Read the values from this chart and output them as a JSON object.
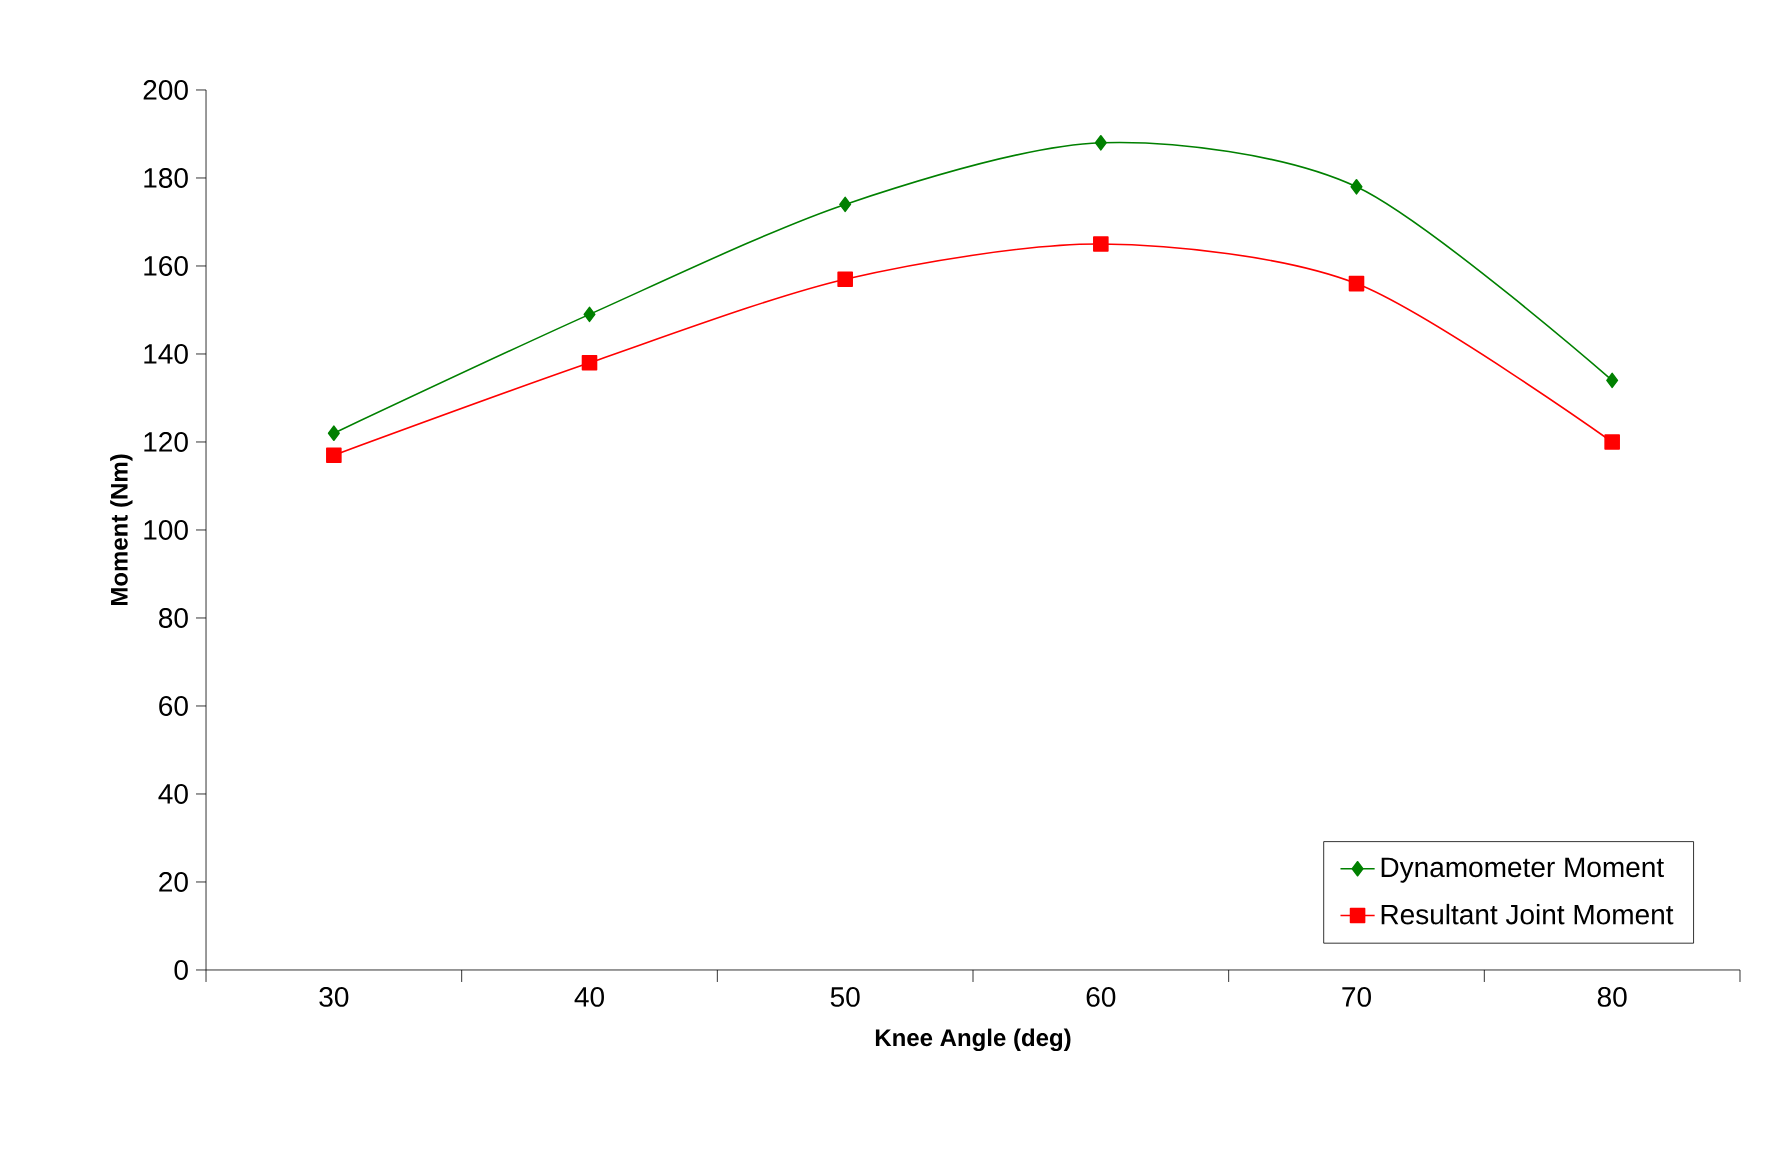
{
  "chart_data": {
    "type": "line",
    "xlabel": "Knee Angle (deg)",
    "ylabel": "Moment (Nm)",
    "categories": [
      "30",
      "40",
      "50",
      "60",
      "70",
      "80"
    ],
    "series": [
      {
        "name": "Dynamometer Moment",
        "color": "#008000",
        "marker": "diamond",
        "values": [
          122,
          149,
          174,
          188,
          178,
          134
        ]
      },
      {
        "name": "Resultant Joint Moment",
        "color": "#ff0000",
        "marker": "square",
        "values": [
          117,
          138,
          157,
          165,
          156,
          120
        ]
      }
    ],
    "ylim": [
      0,
      200
    ],
    "yticks": [
      0,
      20,
      40,
      60,
      80,
      100,
      120,
      140,
      160,
      180,
      200
    ],
    "grid": false,
    "legend": "bottom right",
    "line_style": "solid"
  }
}
